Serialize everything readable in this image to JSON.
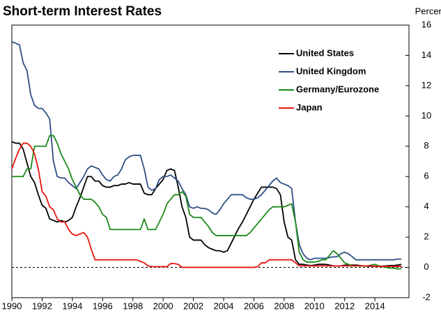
{
  "chart_data": {
    "type": "line",
    "title": "Short-term Interest Rates",
    "y_label": "Percent",
    "x": [
      1990,
      1990.25,
      1990.5,
      1990.75,
      1991,
      1991.25,
      1991.5,
      1991.75,
      1992,
      1992.25,
      1992.5,
      1992.75,
      1993,
      1993.25,
      1993.5,
      1993.75,
      1994,
      1994.25,
      1994.5,
      1994.75,
      1995,
      1995.25,
      1995.5,
      1995.75,
      1996,
      1996.25,
      1996.5,
      1996.75,
      1997,
      1997.25,
      1997.5,
      1997.75,
      1998,
      1998.25,
      1998.5,
      1998.75,
      1999,
      1999.25,
      1999.5,
      1999.75,
      2000,
      2000.25,
      2000.5,
      2000.75,
      2001,
      2001.25,
      2001.5,
      2001.75,
      2002,
      2002.25,
      2002.5,
      2002.75,
      2003,
      2003.25,
      2003.5,
      2003.75,
      2004,
      2004.25,
      2004.5,
      2004.75,
      2005,
      2005.25,
      2005.5,
      2005.75,
      2006,
      2006.25,
      2006.5,
      2006.75,
      2007,
      2007.25,
      2007.5,
      2007.75,
      2008,
      2008.25,
      2008.5,
      2008.75,
      2009,
      2009.25,
      2009.5,
      2009.75,
      2010,
      2010.25,
      2010.5,
      2010.75,
      2011,
      2011.25,
      2011.5,
      2011.75,
      2012,
      2012.25,
      2012.5,
      2012.75,
      2013,
      2013.25,
      2013.5,
      2013.75,
      2014,
      2014.25,
      2014.5,
      2014.75,
      2015,
      2015.25,
      2015.5,
      2015.75
    ],
    "series": [
      {
        "name": "United States",
        "color": "#000000",
        "values": [
          8.3,
          8.2,
          8.2,
          7.8,
          6.9,
          6.0,
          5.6,
          4.8,
          4.1,
          3.9,
          3.2,
          3.1,
          3.0,
          3.1,
          3.0,
          3.1,
          3.3,
          4.0,
          4.6,
          5.3,
          6.0,
          6.0,
          5.7,
          5.7,
          5.4,
          5.3,
          5.3,
          5.4,
          5.4,
          5.5,
          5.5,
          5.6,
          5.5,
          5.5,
          5.5,
          4.9,
          4.8,
          4.8,
          5.2,
          5.5,
          5.8,
          6.4,
          6.5,
          6.4,
          5.3,
          4.0,
          3.3,
          2.0,
          1.8,
          1.8,
          1.8,
          1.5,
          1.3,
          1.2,
          1.1,
          1.1,
          1.0,
          1.1,
          1.6,
          2.1,
          2.6,
          3.0,
          3.5,
          4.0,
          4.5,
          4.9,
          5.3,
          5.3,
          5.3,
          5.3,
          5.2,
          4.8,
          3.0,
          2.0,
          1.8,
          0.5,
          0.2,
          0.2,
          0.15,
          0.12,
          0.15,
          0.2,
          0.2,
          0.2,
          0.15,
          0.1,
          0.1,
          0.1,
          0.15,
          0.15,
          0.15,
          0.15,
          0.12,
          0.1,
          0.08,
          0.08,
          0.08,
          0.08,
          0.08,
          0.1,
          0.12,
          0.12,
          0.15,
          0.2
        ]
      },
      {
        "name": "United Kingdom",
        "color": "#2f4f86",
        "values": [
          14.9,
          14.8,
          14.7,
          13.5,
          13.0,
          11.4,
          10.7,
          10.5,
          10.5,
          10.2,
          9.8,
          7.0,
          6.0,
          5.9,
          5.9,
          5.6,
          5.4,
          5.2,
          5.6,
          6.0,
          6.5,
          6.7,
          6.6,
          6.5,
          6.1,
          5.8,
          5.7,
          6.0,
          6.1,
          6.5,
          7.1,
          7.3,
          7.4,
          7.4,
          7.4,
          6.5,
          5.3,
          5.1,
          5.2,
          5.8,
          6.0,
          6.0,
          6.1,
          5.9,
          5.7,
          5.2,
          4.8,
          4.0,
          3.9,
          4.0,
          3.9,
          3.9,
          3.8,
          3.6,
          3.5,
          3.8,
          4.2,
          4.5,
          4.8,
          4.8,
          4.8,
          4.8,
          4.6,
          4.5,
          4.5,
          4.6,
          4.8,
          5.1,
          5.4,
          5.7,
          5.9,
          5.6,
          5.5,
          5.4,
          5.2,
          3.0,
          1.5,
          0.9,
          0.6,
          0.5,
          0.6,
          0.6,
          0.6,
          0.6,
          0.65,
          0.7,
          0.7,
          0.9,
          1.0,
          0.9,
          0.7,
          0.5,
          0.5,
          0.5,
          0.5,
          0.5,
          0.5,
          0.5,
          0.5,
          0.5,
          0.5,
          0.5,
          0.55,
          0.55
        ]
      },
      {
        "name": "Germany/Eurozone",
        "color": "#1a8a1a",
        "values": [
          6.0,
          6.0,
          6.0,
          6.0,
          6.5,
          6.5,
          8.0,
          8.0,
          8.0,
          8.0,
          8.7,
          8.7,
          8.2,
          7.5,
          7.0,
          6.5,
          5.8,
          5.3,
          4.8,
          4.5,
          4.5,
          4.5,
          4.3,
          4.0,
          3.5,
          3.3,
          2.5,
          2.5,
          2.5,
          2.5,
          2.5,
          2.5,
          2.5,
          2.5,
          2.5,
          3.2,
          2.5,
          2.5,
          2.5,
          3.0,
          3.5,
          4.2,
          4.5,
          4.8,
          4.8,
          5.0,
          4.7,
          3.5,
          3.3,
          3.3,
          3.3,
          3.0,
          2.7,
          2.3,
          2.1,
          2.1,
          2.1,
          2.1,
          2.1,
          2.1,
          2.1,
          2.1,
          2.1,
          2.3,
          2.6,
          2.9,
          3.2,
          3.5,
          3.8,
          4.0,
          4.0,
          4.0,
          4.0,
          4.1,
          4.2,
          3.0,
          1.0,
          0.5,
          0.35,
          0.35,
          0.35,
          0.4,
          0.5,
          0.5,
          0.8,
          1.1,
          0.9,
          0.6,
          0.3,
          0.2,
          0.1,
          0.1,
          0.1,
          0.1,
          0.1,
          0.15,
          0.2,
          0.1,
          0.05,
          0.0,
          -0.05,
          -0.05,
          -0.1,
          -0.1
        ]
      },
      {
        "name": "Japan",
        "color": "#e8150f",
        "values": [
          6.5,
          7.2,
          7.8,
          8.2,
          8.2,
          8.0,
          7.5,
          6.5,
          5.0,
          4.7,
          4.0,
          3.8,
          3.2,
          3.0,
          3.0,
          2.5,
          2.2,
          2.1,
          2.2,
          2.3,
          2.0,
          1.2,
          0.5,
          0.5,
          0.5,
          0.5,
          0.5,
          0.5,
          0.5,
          0.5,
          0.5,
          0.5,
          0.5,
          0.5,
          0.4,
          0.3,
          0.1,
          0.05,
          0.05,
          0.05,
          0.05,
          0.05,
          0.25,
          0.25,
          0.2,
          0.0,
          0.0,
          0.0,
          0.0,
          0.0,
          0.0,
          0.0,
          0.0,
          0.0,
          0.0,
          0.0,
          0.0,
          0.0,
          0.0,
          0.0,
          0.0,
          0.0,
          0.0,
          0.0,
          0.0,
          0.05,
          0.3,
          0.3,
          0.5,
          0.5,
          0.5,
          0.5,
          0.5,
          0.5,
          0.5,
          0.3,
          0.1,
          0.1,
          0.1,
          0.1,
          0.1,
          0.1,
          0.1,
          0.1,
          0.1,
          0.1,
          0.1,
          0.1,
          0.1,
          0.1,
          0.1,
          0.1,
          0.1,
          0.1,
          0.1,
          0.1,
          0.07,
          0.07,
          0.07,
          0.07,
          0.07,
          0.07,
          0.07,
          0.07
        ]
      }
    ],
    "xlim": [
      1990,
      2016.25
    ],
    "xticks": [
      1990,
      1992,
      1994,
      1996,
      1998,
      2000,
      2002,
      2004,
      2006,
      2008,
      2010,
      2012,
      2014
    ],
    "ylim": [
      -2,
      16
    ],
    "yticks": [
      -2,
      0,
      2,
      4,
      6,
      8,
      10,
      12,
      14,
      16
    ],
    "zero_line": true,
    "legend": "upper right"
  }
}
